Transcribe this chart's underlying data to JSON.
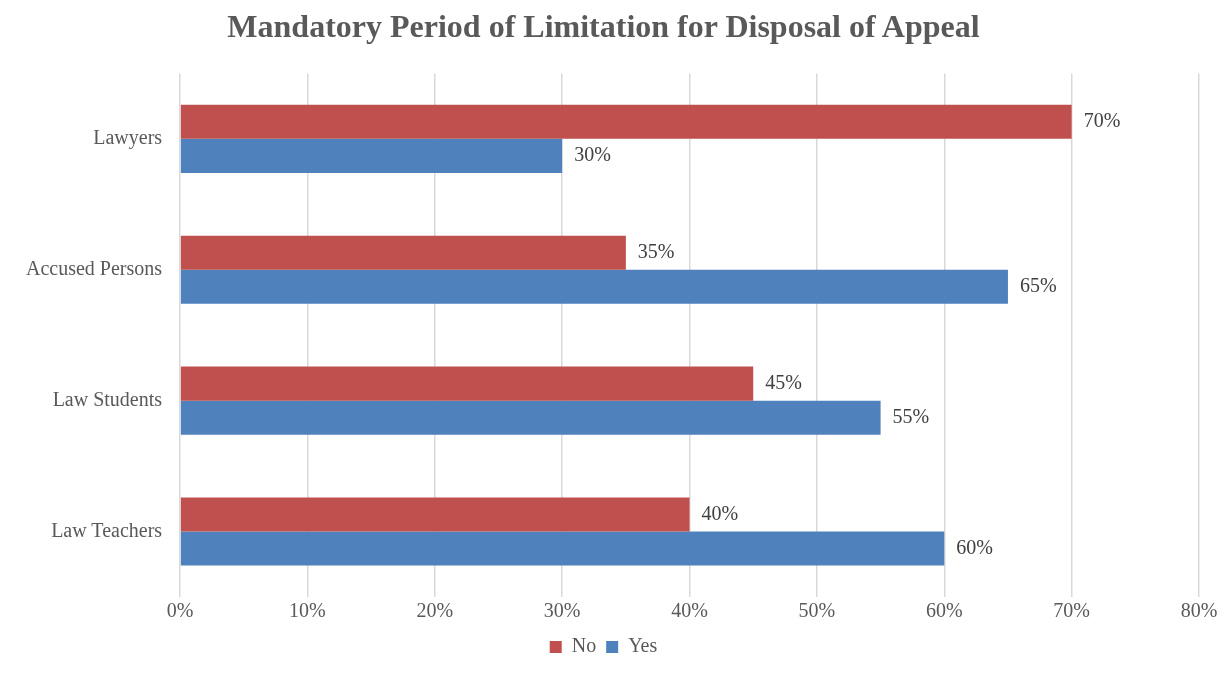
{
  "chart_data": {
    "type": "bar",
    "orientation": "horizontal",
    "title": "Mandatory Period of Limitation for Disposal of Appeal",
    "categories": [
      "Lawyers",
      "Accused Persons",
      "Law Students",
      "Law Teachers"
    ],
    "series": [
      {
        "name": "No",
        "color": "#c0504d",
        "values": [
          70,
          35,
          45,
          40
        ],
        "value_labels": [
          "70%",
          "35%",
          "45%",
          "40%"
        ]
      },
      {
        "name": "Yes",
        "color": "#4f81bd",
        "values": [
          30,
          65,
          55,
          60
        ],
        "value_labels": [
          "30%",
          "65%",
          "55%",
          "60%"
        ]
      }
    ],
    "xlim": [
      0,
      80
    ],
    "xticks": [
      {
        "value": 0,
        "label": "0%"
      },
      {
        "value": 10,
        "label": "10%"
      },
      {
        "value": 20,
        "label": "20%"
      },
      {
        "value": 30,
        "label": "30%"
      },
      {
        "value": 40,
        "label": "40%"
      },
      {
        "value": 50,
        "label": "50%"
      },
      {
        "value": 60,
        "label": "60%"
      },
      {
        "value": 70,
        "label": "70%"
      },
      {
        "value": 80,
        "label": "80%"
      }
    ],
    "grid": "x",
    "legend": "bottom"
  }
}
